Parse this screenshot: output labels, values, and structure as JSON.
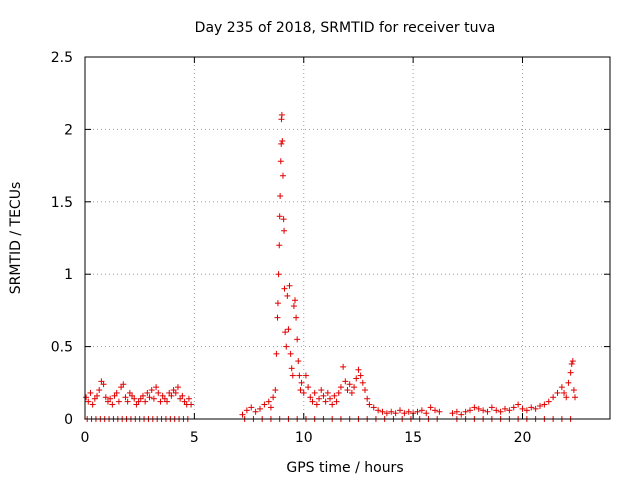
{
  "chart_data": {
    "type": "scatter",
    "title": "Day 235 of 2018, SRMTID for receiver tuva",
    "xlabel": "GPS time / hours",
    "ylabel": "SRMTID / TECUs",
    "xlim": [
      0,
      24
    ],
    "ylim": [
      0,
      2.5
    ],
    "xticks": [
      0,
      5,
      10,
      15,
      20
    ],
    "yticks": [
      0,
      0.5,
      1,
      1.5,
      2,
      2.5
    ],
    "xtick_labels": [
      "0",
      "5",
      "10",
      "15",
      "20"
    ],
    "ytick_labels": [
      "0",
      "0.5",
      "1",
      "1.5",
      "2",
      "2.5"
    ],
    "grid": true,
    "marker": "+",
    "series": [
      {
        "name": "SRMTID",
        "color": "#e00000",
        "points": [
          [
            0.05,
            0.15
          ],
          [
            0.15,
            0.12
          ],
          [
            0.25,
            0.18
          ],
          [
            0.35,
            0.1
          ],
          [
            0.45,
            0.14
          ],
          [
            0.55,
            0.16
          ],
          [
            0.65,
            0.2
          ],
          [
            0.75,
            0.26
          ],
          [
            0.85,
            0.24
          ],
          [
            0.95,
            0.15
          ],
          [
            1.05,
            0.12
          ],
          [
            1.15,
            0.14
          ],
          [
            1.25,
            0.1
          ],
          [
            1.35,
            0.16
          ],
          [
            1.45,
            0.18
          ],
          [
            1.55,
            0.12
          ],
          [
            1.65,
            0.22
          ],
          [
            1.75,
            0.24
          ],
          [
            1.85,
            0.15
          ],
          [
            1.95,
            0.12
          ],
          [
            2.05,
            0.18
          ],
          [
            2.15,
            0.16
          ],
          [
            2.25,
            0.14
          ],
          [
            2.35,
            0.1
          ],
          [
            2.45,
            0.12
          ],
          [
            2.55,
            0.14
          ],
          [
            2.65,
            0.16
          ],
          [
            2.75,
            0.12
          ],
          [
            2.85,
            0.18
          ],
          [
            2.95,
            0.15
          ],
          [
            3.05,
            0.2
          ],
          [
            3.15,
            0.14
          ],
          [
            3.25,
            0.22
          ],
          [
            3.35,
            0.18
          ],
          [
            3.45,
            0.12
          ],
          [
            3.55,
            0.16
          ],
          [
            3.65,
            0.14
          ],
          [
            3.75,
            0.12
          ],
          [
            3.85,
            0.18
          ],
          [
            3.95,
            0.16
          ],
          [
            4.05,
            0.2
          ],
          [
            4.15,
            0.18
          ],
          [
            4.25,
            0.22
          ],
          [
            4.35,
            0.14
          ],
          [
            4.45,
            0.16
          ],
          [
            4.55,
            0.12
          ],
          [
            4.65,
            0.1
          ],
          [
            4.75,
            0.14
          ],
          [
            4.85,
            0.1
          ],
          [
            0.1,
            0.0
          ],
          [
            0.3,
            0.0
          ],
          [
            0.5,
            0.0
          ],
          [
            0.7,
            0.0
          ],
          [
            0.9,
            0.0
          ],
          [
            1.1,
            0.0
          ],
          [
            1.3,
            0.0
          ],
          [
            1.5,
            0.0
          ],
          [
            1.7,
            0.0
          ],
          [
            1.9,
            0.0
          ],
          [
            2.1,
            0.0
          ],
          [
            2.3,
            0.0
          ],
          [
            2.5,
            0.0
          ],
          [
            2.7,
            0.0
          ],
          [
            2.9,
            0.0
          ],
          [
            3.1,
            0.0
          ],
          [
            3.3,
            0.0
          ],
          [
            3.5,
            0.0
          ],
          [
            3.7,
            0.0
          ],
          [
            3.9,
            0.0
          ],
          [
            4.1,
            0.0
          ],
          [
            4.3,
            0.0
          ],
          [
            4.5,
            0.0
          ],
          [
            4.7,
            0.0
          ],
          [
            7.2,
            0.03
          ],
          [
            7.4,
            0.06
          ],
          [
            7.6,
            0.08
          ],
          [
            7.8,
            0.05
          ],
          [
            8.0,
            0.07
          ],
          [
            8.2,
            0.1
          ],
          [
            8.4,
            0.12
          ],
          [
            8.5,
            0.08
          ],
          [
            8.6,
            0.15
          ],
          [
            8.7,
            0.2
          ],
          [
            8.75,
            0.45
          ],
          [
            8.8,
            0.7
          ],
          [
            8.82,
            0.8
          ],
          [
            8.85,
            1.0
          ],
          [
            8.88,
            1.2
          ],
          [
            8.9,
            1.4
          ],
          [
            8.92,
            1.54
          ],
          [
            8.95,
            1.78
          ],
          [
            8.97,
            1.9
          ],
          [
            8.98,
            2.07
          ],
          [
            9.0,
            2.1
          ],
          [
            9.02,
            1.92
          ],
          [
            9.05,
            1.68
          ],
          [
            9.08,
            1.38
          ],
          [
            9.1,
            1.3
          ],
          [
            9.12,
            0.9
          ],
          [
            9.15,
            0.6
          ],
          [
            9.2,
            0.5
          ],
          [
            9.25,
            0.85
          ],
          [
            9.3,
            0.62
          ],
          [
            9.35,
            0.92
          ],
          [
            9.4,
            0.45
          ],
          [
            9.45,
            0.35
          ],
          [
            9.5,
            0.3
          ],
          [
            9.55,
            0.78
          ],
          [
            9.6,
            0.82
          ],
          [
            9.65,
            0.7
          ],
          [
            9.7,
            0.55
          ],
          [
            9.75,
            0.4
          ],
          [
            9.8,
            0.3
          ],
          [
            9.85,
            0.2
          ],
          [
            9.9,
            0.25
          ],
          [
            10.0,
            0.18
          ],
          [
            10.1,
            0.3
          ],
          [
            10.2,
            0.22
          ],
          [
            10.3,
            0.15
          ],
          [
            10.4,
            0.12
          ],
          [
            10.5,
            0.18
          ],
          [
            10.6,
            0.1
          ],
          [
            10.7,
            0.14
          ],
          [
            10.8,
            0.2
          ],
          [
            10.9,
            0.16
          ],
          [
            11.0,
            0.12
          ],
          [
            11.1,
            0.18
          ],
          [
            11.2,
            0.14
          ],
          [
            11.3,
            0.1
          ],
          [
            11.4,
            0.16
          ],
          [
            11.5,
            0.12
          ],
          [
            11.6,
            0.18
          ],
          [
            11.7,
            0.22
          ],
          [
            11.8,
            0.36
          ],
          [
            11.9,
            0.26
          ],
          [
            12.0,
            0.2
          ],
          [
            12.1,
            0.24
          ],
          [
            12.2,
            0.18
          ],
          [
            12.3,
            0.22
          ],
          [
            12.4,
            0.28
          ],
          [
            12.5,
            0.34
          ],
          [
            12.6,
            0.3
          ],
          [
            12.7,
            0.25
          ],
          [
            12.8,
            0.2
          ],
          [
            12.9,
            0.14
          ],
          [
            13.0,
            0.1
          ],
          [
            13.2,
            0.08
          ],
          [
            13.4,
            0.06
          ],
          [
            13.6,
            0.05
          ],
          [
            13.8,
            0.04
          ],
          [
            14.0,
            0.05
          ],
          [
            14.2,
            0.04
          ],
          [
            14.4,
            0.06
          ],
          [
            14.6,
            0.04
          ],
          [
            14.8,
            0.05
          ],
          [
            15.0,
            0.04
          ],
          [
            15.2,
            0.05
          ],
          [
            15.4,
            0.06
          ],
          [
            15.6,
            0.04
          ],
          [
            15.8,
            0.08
          ],
          [
            16.0,
            0.06
          ],
          [
            16.2,
            0.05
          ],
          [
            16.8,
            0.04
          ],
          [
            17.0,
            0.05
          ],
          [
            17.2,
            0.03
          ],
          [
            17.4,
            0.05
          ],
          [
            17.6,
            0.06
          ],
          [
            17.8,
            0.08
          ],
          [
            18.0,
            0.07
          ],
          [
            18.2,
            0.06
          ],
          [
            18.4,
            0.05
          ],
          [
            18.6,
            0.08
          ],
          [
            18.8,
            0.06
          ],
          [
            19.0,
            0.05
          ],
          [
            19.2,
            0.07
          ],
          [
            19.4,
            0.06
          ],
          [
            19.6,
            0.08
          ],
          [
            19.8,
            0.1
          ],
          [
            20.0,
            0.07
          ],
          [
            20.2,
            0.06
          ],
          [
            20.4,
            0.08
          ],
          [
            20.6,
            0.07
          ],
          [
            20.8,
            0.09
          ],
          [
            21.0,
            0.1
          ],
          [
            21.2,
            0.12
          ],
          [
            21.4,
            0.15
          ],
          [
            21.6,
            0.18
          ],
          [
            21.8,
            0.22
          ],
          [
            21.9,
            0.18
          ],
          [
            22.0,
            0.15
          ],
          [
            22.1,
            0.25
          ],
          [
            22.2,
            0.32
          ],
          [
            22.25,
            0.38
          ],
          [
            22.3,
            0.4
          ],
          [
            22.35,
            0.2
          ],
          [
            22.4,
            0.15
          ],
          [
            7.3,
            0.0
          ],
          [
            7.7,
            0.0
          ],
          [
            8.1,
            0.0
          ],
          [
            8.5,
            0.0
          ],
          [
            8.9,
            0.0
          ],
          [
            9.3,
            0.0
          ],
          [
            9.7,
            0.0
          ],
          [
            10.1,
            0.0
          ],
          [
            10.5,
            0.0
          ],
          [
            10.9,
            0.0
          ],
          [
            11.3,
            0.0
          ],
          [
            11.7,
            0.0
          ],
          [
            12.1,
            0.0
          ],
          [
            12.5,
            0.0
          ],
          [
            12.9,
            0.0
          ],
          [
            13.3,
            0.0
          ],
          [
            13.7,
            0.0
          ],
          [
            14.1,
            0.0
          ],
          [
            14.5,
            0.0
          ],
          [
            14.9,
            0.0
          ],
          [
            15.3,
            0.0
          ],
          [
            15.7,
            0.0
          ],
          [
            16.1,
            0.0
          ],
          [
            17.0,
            0.0
          ],
          [
            17.4,
            0.0
          ],
          [
            17.8,
            0.0
          ],
          [
            18.2,
            0.0
          ],
          [
            18.6,
            0.0
          ],
          [
            19.0,
            0.0
          ],
          [
            19.4,
            0.0
          ],
          [
            19.8,
            0.0
          ],
          [
            20.2,
            0.0
          ],
          [
            20.6,
            0.0
          ],
          [
            21.0,
            0.0
          ],
          [
            21.4,
            0.0
          ],
          [
            21.8,
            0.0
          ],
          [
            22.2,
            0.0
          ]
        ]
      }
    ]
  }
}
